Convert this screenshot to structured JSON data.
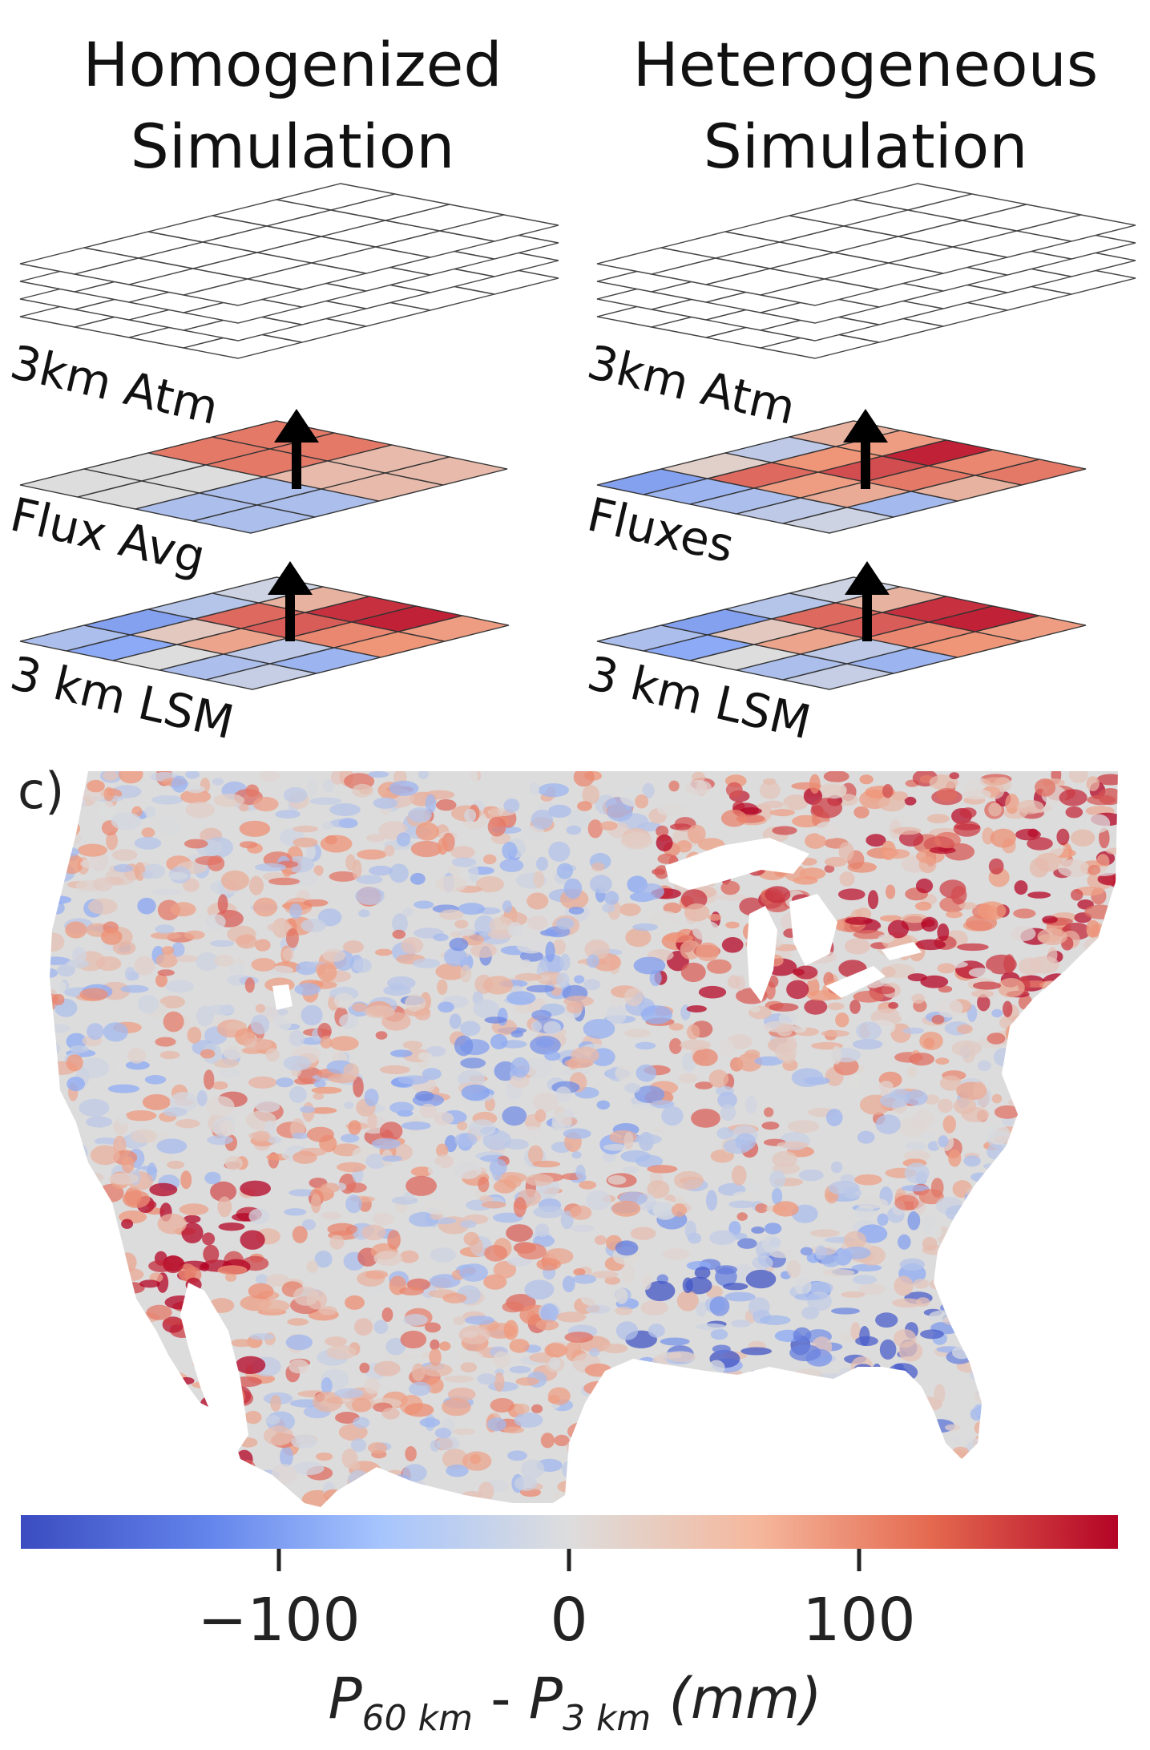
{
  "titles": {
    "left": [
      "Homogenized",
      "Simulation"
    ],
    "right": [
      "Heterogeneous",
      "Simulation"
    ]
  },
  "layers": {
    "left": {
      "atm": "3km Atm",
      "flux": "Flux Avg",
      "lsm": "3 km LSM"
    },
    "right": {
      "atm": "3km Atm",
      "flux": "Fluxes",
      "lsm": "3 km LSM"
    }
  },
  "panel_label": "c)",
  "colors": {
    "grid_line": "#333333",
    "arrow": "#000000",
    "map_land_neutral": "#dcdcdc",
    "cmap_low": "#3b4cc0",
    "cmap_mid": "#dddddd",
    "cmap_high": "#b40426"
  },
  "colorbar": {
    "ticks": [
      "−100",
      "0",
      "100"
    ],
    "label_parts": {
      "p1": "P",
      "sub1": "60 km",
      "dash": " - ",
      "p2": "P",
      "sub2": "3 km",
      "unit": " (mm)"
    }
  },
  "grids": {
    "lsm": [
      [
        -0.3,
        -0.55,
        -0.25,
        -0.1
      ],
      [
        -0.5,
        0.15,
        0.65,
        0.3
      ],
      [
        0.0,
        0.4,
        0.7,
        0.85
      ],
      [
        -0.3,
        -0.2,
        0.55,
        0.9
      ],
      [
        -0.15,
        -0.4,
        0.5,
        0.45
      ]
    ],
    "flux_avg": [
      [
        0.0,
        0.0,
        0.6,
        0.6
      ],
      [
        0.0,
        0.0,
        0.6,
        0.6
      ],
      [
        -0.3,
        -0.3,
        0.25,
        0.25
      ],
      [
        -0.3,
        -0.3,
        0.25,
        0.25
      ]
    ],
    "fluxes": [
      [
        -0.55,
        0.1,
        -0.2,
        0.3
      ],
      [
        -0.4,
        0.65,
        0.5,
        0.45
      ],
      [
        -0.3,
        0.45,
        0.75,
        0.9
      ],
      [
        -0.2,
        0.35,
        0.6,
        0.55
      ],
      [
        -0.1,
        -0.35,
        0.3,
        0.6
      ]
    ]
  }
}
